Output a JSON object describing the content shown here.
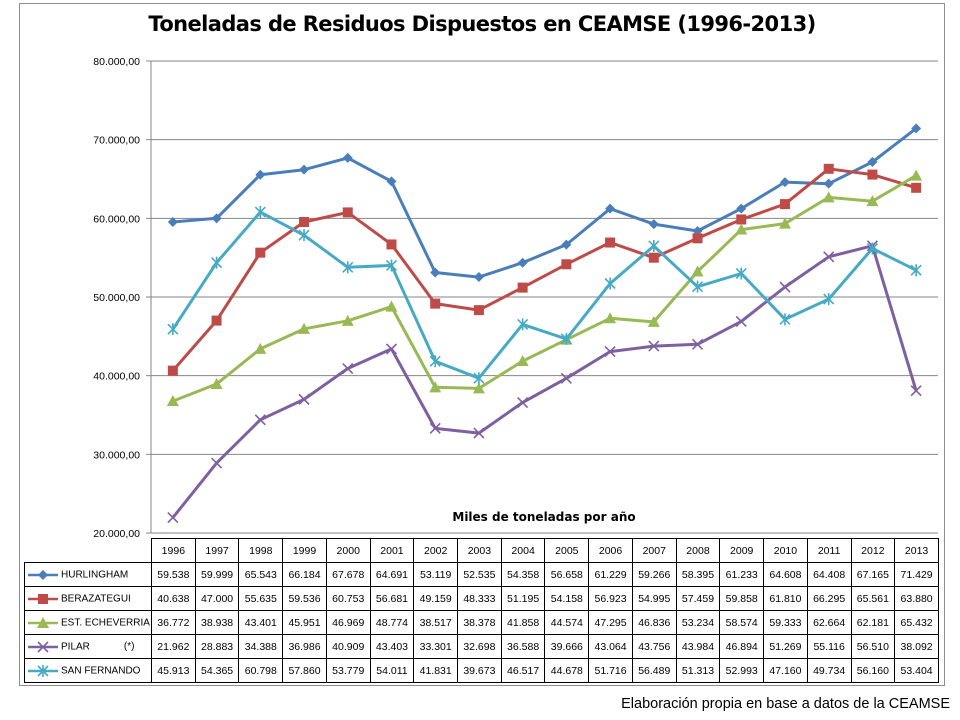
{
  "chart_data": {
    "type": "line",
    "title": "Toneladas de Residuos Dispuestos en CEAMSE (1996-2013)",
    "xlabel": "Miles de toneladas por año",
    "ylabel": "",
    "ylim": [
      20000,
      80000
    ],
    "yticks": [
      "20.000,00",
      "30.000,00",
      "40.000,00",
      "50.000,00",
      "60.000,00",
      "70.000,00",
      "80.000,00"
    ],
    "grid": true,
    "legend": "data-table",
    "x": [
      "1996",
      "1997",
      "1998",
      "1999",
      "2000",
      "2001",
      "2002",
      "2003",
      "2004",
      "2005",
      "2006",
      "2007",
      "2008",
      "2009",
      "2010",
      "2011",
      "2012",
      "2013"
    ],
    "series": [
      {
        "name": "HURLINGHAM",
        "color": "#4a7ebb",
        "marker": "diamond",
        "values": [
          59538,
          59999,
          65543,
          66184,
          67678,
          64691,
          53119,
          52535,
          54358,
          56658,
          61229,
          59266,
          58395,
          61233,
          64608,
          64408,
          67165,
          71429
        ],
        "labels": [
          "59.538",
          "59.999",
          "65.543",
          "66.184",
          "67.678",
          "64.691",
          "53.119",
          "52.535",
          "54.358",
          "56.658",
          "61.229",
          "59.266",
          "58.395",
          "61.233",
          "64.608",
          "64.408",
          "67.165",
          "71.429"
        ]
      },
      {
        "name": "BERAZATEGUI",
        "color": "#be4b48",
        "marker": "square",
        "values": [
          40638,
          47000,
          55635,
          59536,
          60753,
          56681,
          49159,
          48333,
          51195,
          54158,
          56923,
          54995,
          57459,
          59858,
          61810,
          66295,
          65561,
          63880
        ],
        "labels": [
          "40.638",
          "47.000",
          "55.635",
          "59.536",
          "60.753",
          "56.681",
          "49.159",
          "48.333",
          "51.195",
          "54.158",
          "56.923",
          "54.995",
          "57.459",
          "59.858",
          "61.810",
          "66.295",
          "65.561",
          "63.880"
        ]
      },
      {
        "name": "EST. ECHEVERRIA",
        "color": "#98b954",
        "marker": "triangle",
        "values": [
          36772,
          38938,
          43401,
          45951,
          46969,
          48774,
          38517,
          38378,
          41858,
          44574,
          47295,
          46836,
          53234,
          58574,
          59333,
          62664,
          62181,
          65432
        ],
        "labels": [
          "36.772",
          "38.938",
          "43.401",
          "45.951",
          "46.969",
          "48.774",
          "38.517",
          "38.378",
          "41.858",
          "44.574",
          "47.295",
          "46.836",
          "53.234",
          "58.574",
          "59.333",
          "62.664",
          "62.181",
          "65.432"
        ]
      },
      {
        "name": "PILAR",
        "note": "(*)",
        "color": "#7d60a0",
        "marker": "x",
        "values": [
          21962,
          28883,
          34388,
          36986,
          40909,
          43403,
          33301,
          32698,
          36588,
          39666,
          43064,
          43756,
          43984,
          46894,
          51269,
          55116,
          56510,
          38092
        ],
        "labels": [
          "21.962",
          "28.883",
          "34.388",
          "36.986",
          "40.909",
          "43.403",
          "33.301",
          "32.698",
          "36.588",
          "39.666",
          "43.064",
          "43.756",
          "43.984",
          "46.894",
          "51.269",
          "55.116",
          "56.510",
          "38.092"
        ]
      },
      {
        "name": "SAN FERNANDO",
        "color": "#46aac5",
        "marker": "star",
        "values": [
          45913,
          54365,
          60798,
          57860,
          53779,
          54011,
          41831,
          39673,
          46517,
          44678,
          51716,
          56489,
          51313,
          52993,
          47160,
          49734,
          56160,
          53404
        ],
        "labels": [
          "45.913",
          "54.365",
          "60.798",
          "57.860",
          "53.779",
          "54.011",
          "41.831",
          "39.673",
          "46.517",
          "44.678",
          "51.716",
          "56.489",
          "51.313",
          "52.993",
          "47.160",
          "49.734",
          "56.160",
          "53.404"
        ]
      }
    ]
  },
  "source_note": "Elaboración propia en base a datos de la CEAMSE"
}
